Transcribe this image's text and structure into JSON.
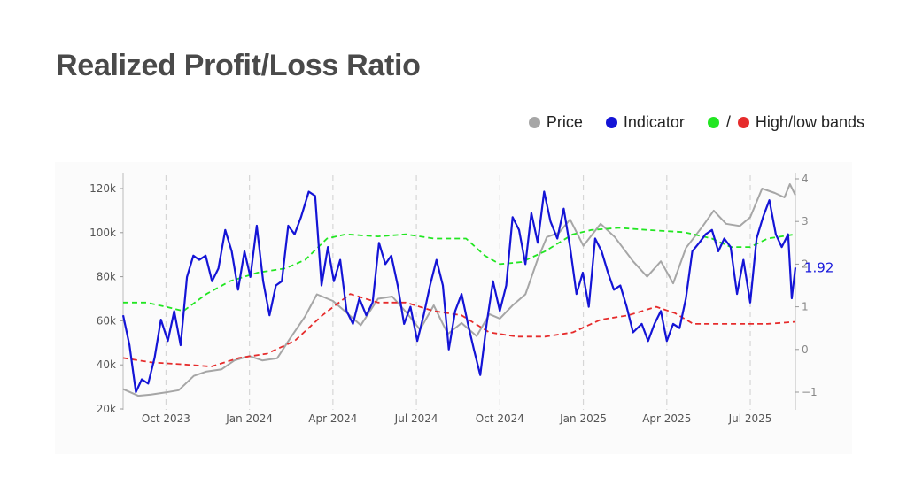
{
  "title": "Realized Profit/Loss Ratio",
  "legend": {
    "price": {
      "label": "Price",
      "color": "#a6a6a6"
    },
    "indicator": {
      "label": "Indicator",
      "color": "#1414d6"
    },
    "bands": {
      "label": "High/low bands",
      "high_color": "#22e622",
      "low_color": "#e62c2c",
      "separator": "/"
    }
  },
  "chart_data": {
    "type": "line",
    "x_tick_labels": [
      "Oct 2023",
      "Jan 2024",
      "Apr 2024",
      "Jul 2024",
      "Oct 2024",
      "Jan 2025",
      "Apr 2025",
      "Jul 2025"
    ],
    "x_range": [
      "2023-08-15",
      "2025-08-20"
    ],
    "y_left": {
      "ticks": [
        "20k",
        "40k",
        "60k",
        "80k",
        "100k",
        "120k"
      ],
      "range": [
        20000,
        120000
      ]
    },
    "y_right": {
      "ticks": [
        "-1",
        "0",
        "1",
        "2",
        "3",
        "4"
      ],
      "range": [
        -1.1,
        4
      ]
    },
    "end_value_label": "1.92",
    "grid": "vertical dashed",
    "series": [
      {
        "name": "Price",
        "axis": "left",
        "color": "#a6a6a6",
        "points": [
          [
            "2023-08-15",
            29000
          ],
          [
            "2023-09-01",
            26000
          ],
          [
            "2023-09-15",
            26500
          ],
          [
            "2023-10-01",
            27500
          ],
          [
            "2023-10-15",
            28500
          ],
          [
            "2023-11-01",
            35000
          ],
          [
            "2023-11-15",
            37000
          ],
          [
            "2023-12-01",
            38000
          ],
          [
            "2023-12-15",
            42000
          ],
          [
            "2024-01-01",
            44000
          ],
          [
            "2024-01-15",
            42000
          ],
          [
            "2024-02-01",
            43000
          ],
          [
            "2024-02-15",
            52000
          ],
          [
            "2024-03-01",
            62000
          ],
          [
            "2024-03-14",
            72000
          ],
          [
            "2024-04-01",
            69000
          ],
          [
            "2024-04-15",
            64000
          ],
          [
            "2024-05-01",
            58000
          ],
          [
            "2024-05-20",
            70000
          ],
          [
            "2024-06-05",
            71000
          ],
          [
            "2024-06-20",
            64000
          ],
          [
            "2024-07-05",
            56000
          ],
          [
            "2024-07-20",
            67000
          ],
          [
            "2024-08-05",
            54000
          ],
          [
            "2024-08-20",
            59000
          ],
          [
            "2024-09-06",
            53000
          ],
          [
            "2024-09-20",
            63000
          ],
          [
            "2024-10-01",
            61000
          ],
          [
            "2024-10-15",
            67000
          ],
          [
            "2024-10-29",
            72000
          ],
          [
            "2024-11-12",
            88000
          ],
          [
            "2024-11-22",
            98000
          ],
          [
            "2024-12-05",
            100000
          ],
          [
            "2024-12-17",
            106000
          ],
          [
            "2025-01-01",
            94000
          ],
          [
            "2025-01-20",
            104000
          ],
          [
            "2025-02-05",
            98000
          ],
          [
            "2025-02-25",
            87000
          ],
          [
            "2025-03-10",
            80000
          ],
          [
            "2025-03-25",
            87000
          ],
          [
            "2025-04-08",
            77000
          ],
          [
            "2025-04-22",
            93000
          ],
          [
            "2025-05-10",
            103000
          ],
          [
            "2025-05-22",
            110000
          ],
          [
            "2025-06-05",
            104000
          ],
          [
            "2025-06-20",
            103000
          ],
          [
            "2025-07-01",
            107000
          ],
          [
            "2025-07-14",
            120000
          ],
          [
            "2025-07-28",
            118000
          ],
          [
            "2025-08-08",
            116000
          ],
          [
            "2025-08-14",
            122000
          ],
          [
            "2025-08-20",
            117000
          ]
        ]
      },
      {
        "name": "Indicator",
        "axis": "right",
        "color": "#1414d6",
        "points": [
          [
            "2023-08-15",
            0.8
          ],
          [
            "2023-08-22",
            0.1
          ],
          [
            "2023-08-29",
            -1.0
          ],
          [
            "2023-09-05",
            -0.7
          ],
          [
            "2023-09-12",
            -0.8
          ],
          [
            "2023-09-19",
            -0.2
          ],
          [
            "2023-09-26",
            0.7
          ],
          [
            "2023-10-03",
            0.2
          ],
          [
            "2023-10-10",
            0.9
          ],
          [
            "2023-10-17",
            0.1
          ],
          [
            "2023-10-24",
            1.7
          ],
          [
            "2023-10-31",
            2.2
          ],
          [
            "2023-11-07",
            2.1
          ],
          [
            "2023-11-14",
            2.2
          ],
          [
            "2023-11-21",
            1.6
          ],
          [
            "2023-11-28",
            1.9
          ],
          [
            "2023-12-05",
            2.8
          ],
          [
            "2023-12-12",
            2.3
          ],
          [
            "2023-12-19",
            1.4
          ],
          [
            "2023-12-26",
            2.3
          ],
          [
            "2024-01-02",
            1.7
          ],
          [
            "2024-01-09",
            2.9
          ],
          [
            "2024-01-16",
            1.6
          ],
          [
            "2024-01-23",
            0.8
          ],
          [
            "2024-01-30",
            1.5
          ],
          [
            "2024-02-06",
            1.6
          ],
          [
            "2024-02-13",
            2.9
          ],
          [
            "2024-02-20",
            2.7
          ],
          [
            "2024-02-27",
            3.1
          ],
          [
            "2024-03-05",
            3.7
          ],
          [
            "2024-03-12",
            3.6
          ],
          [
            "2024-03-19",
            1.5
          ],
          [
            "2024-03-26",
            2.4
          ],
          [
            "2024-04-02",
            1.6
          ],
          [
            "2024-04-09",
            2.1
          ],
          [
            "2024-04-16",
            0.9
          ],
          [
            "2024-04-23",
            0.6
          ],
          [
            "2024-04-30",
            1.2
          ],
          [
            "2024-05-07",
            0.8
          ],
          [
            "2024-05-14",
            1.1
          ],
          [
            "2024-05-21",
            2.5
          ],
          [
            "2024-05-28",
            2.0
          ],
          [
            "2024-06-04",
            2.2
          ],
          [
            "2024-06-11",
            1.5
          ],
          [
            "2024-06-18",
            0.6
          ],
          [
            "2024-06-25",
            1.0
          ],
          [
            "2024-07-02",
            0.2
          ],
          [
            "2024-07-09",
            0.8
          ],
          [
            "2024-07-16",
            1.5
          ],
          [
            "2024-07-23",
            2.1
          ],
          [
            "2024-07-30",
            1.5
          ],
          [
            "2024-08-06",
            0.0
          ],
          [
            "2024-08-13",
            0.9
          ],
          [
            "2024-08-20",
            1.3
          ],
          [
            "2024-08-27",
            0.6
          ],
          [
            "2024-09-03",
            0.0
          ],
          [
            "2024-09-10",
            -0.6
          ],
          [
            "2024-09-17",
            0.6
          ],
          [
            "2024-09-24",
            1.6
          ],
          [
            "2024-10-01",
            0.9
          ],
          [
            "2024-10-08",
            1.5
          ],
          [
            "2024-10-15",
            3.1
          ],
          [
            "2024-10-22",
            2.8
          ],
          [
            "2024-10-29",
            2.0
          ],
          [
            "2024-11-05",
            3.2
          ],
          [
            "2024-11-12",
            2.5
          ],
          [
            "2024-11-19",
            3.7
          ],
          [
            "2024-11-26",
            3.0
          ],
          [
            "2024-12-03",
            2.6
          ],
          [
            "2024-12-10",
            3.3
          ],
          [
            "2024-12-17",
            2.4
          ],
          [
            "2024-12-24",
            1.3
          ],
          [
            "2024-12-31",
            1.8
          ],
          [
            "2025-01-07",
            1.0
          ],
          [
            "2025-01-14",
            2.6
          ],
          [
            "2025-01-21",
            2.3
          ],
          [
            "2025-01-28",
            1.8
          ],
          [
            "2025-02-04",
            1.4
          ],
          [
            "2025-02-11",
            1.5
          ],
          [
            "2025-02-18",
            1.0
          ],
          [
            "2025-02-25",
            0.4
          ],
          [
            "2025-03-04",
            0.6
          ],
          [
            "2025-03-11",
            0.2
          ],
          [
            "2025-03-18",
            0.6
          ],
          [
            "2025-03-25",
            0.9
          ],
          [
            "2025-04-01",
            0.2
          ],
          [
            "2025-04-08",
            0.6
          ],
          [
            "2025-04-15",
            0.5
          ],
          [
            "2025-04-22",
            1.2
          ],
          [
            "2025-04-29",
            2.3
          ],
          [
            "2025-05-06",
            2.5
          ],
          [
            "2025-05-13",
            2.7
          ],
          [
            "2025-05-20",
            2.8
          ],
          [
            "2025-05-27",
            2.3
          ],
          [
            "2025-06-03",
            2.6
          ],
          [
            "2025-06-10",
            2.4
          ],
          [
            "2025-06-17",
            1.3
          ],
          [
            "2025-06-24",
            2.1
          ],
          [
            "2025-07-01",
            1.1
          ],
          [
            "2025-07-08",
            2.6
          ],
          [
            "2025-07-15",
            3.1
          ],
          [
            "2025-07-22",
            3.5
          ],
          [
            "2025-07-29",
            2.7
          ],
          [
            "2025-08-05",
            2.4
          ],
          [
            "2025-08-12",
            2.7
          ],
          [
            "2025-08-16",
            1.2
          ],
          [
            "2025-08-20",
            1.92
          ]
        ]
      },
      {
        "name": "High band",
        "axis": "right",
        "color": "#22e622",
        "points": [
          [
            "2023-08-15",
            1.1
          ],
          [
            "2023-09-10",
            1.1
          ],
          [
            "2023-10-01",
            1.0
          ],
          [
            "2023-10-20",
            0.9
          ],
          [
            "2023-11-15",
            1.3
          ],
          [
            "2023-12-10",
            1.6
          ],
          [
            "2024-01-10",
            1.8
          ],
          [
            "2024-02-10",
            1.9
          ],
          [
            "2024-03-01",
            2.1
          ],
          [
            "2024-03-25",
            2.6
          ],
          [
            "2024-04-15",
            2.7
          ],
          [
            "2024-05-20",
            2.65
          ],
          [
            "2024-06-20",
            2.7
          ],
          [
            "2024-07-20",
            2.6
          ],
          [
            "2024-08-25",
            2.6
          ],
          [
            "2024-09-15",
            2.2
          ],
          [
            "2024-10-01",
            2.0
          ],
          [
            "2024-10-25",
            2.05
          ],
          [
            "2024-11-20",
            2.3
          ],
          [
            "2024-12-20",
            2.7
          ],
          [
            "2025-01-10",
            2.8
          ],
          [
            "2025-02-10",
            2.85
          ],
          [
            "2025-03-10",
            2.8
          ],
          [
            "2025-04-20",
            2.75
          ],
          [
            "2025-05-20",
            2.6
          ],
          [
            "2025-06-10",
            2.4
          ],
          [
            "2025-07-01",
            2.4
          ],
          [
            "2025-07-20",
            2.6
          ],
          [
            "2025-08-20",
            2.7
          ]
        ]
      },
      {
        "name": "Low band",
        "axis": "right",
        "color": "#e62c2c",
        "points": [
          [
            "2023-08-15",
            -0.2
          ],
          [
            "2023-09-15",
            -0.3
          ],
          [
            "2023-10-20",
            -0.35
          ],
          [
            "2023-11-20",
            -0.4
          ],
          [
            "2023-12-20",
            -0.2
          ],
          [
            "2024-01-20",
            -0.1
          ],
          [
            "2024-02-20",
            0.2
          ],
          [
            "2024-03-20",
            0.8
          ],
          [
            "2024-04-20",
            1.3
          ],
          [
            "2024-05-20",
            1.1
          ],
          [
            "2024-06-20",
            1.1
          ],
          [
            "2024-07-20",
            0.9
          ],
          [
            "2024-08-20",
            0.8
          ],
          [
            "2024-09-20",
            0.4
          ],
          [
            "2024-10-20",
            0.3
          ],
          [
            "2024-11-20",
            0.3
          ],
          [
            "2024-12-20",
            0.4
          ],
          [
            "2025-01-20",
            0.7
          ],
          [
            "2025-02-20",
            0.8
          ],
          [
            "2025-03-20",
            1.0
          ],
          [
            "2025-04-10",
            0.85
          ],
          [
            "2025-04-30",
            0.6
          ],
          [
            "2025-05-30",
            0.6
          ],
          [
            "2025-06-30",
            0.6
          ],
          [
            "2025-07-20",
            0.6
          ],
          [
            "2025-08-20",
            0.65
          ]
        ]
      }
    ]
  }
}
